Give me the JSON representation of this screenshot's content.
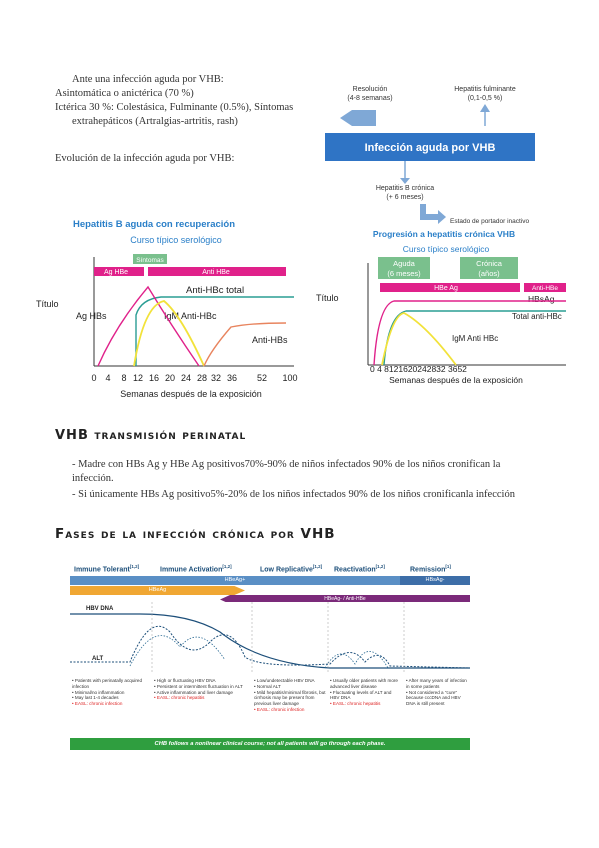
{
  "intro": {
    "line1": "Ante una infección aguda por VHB:",
    "line2": "Asintomática o anictérica (70 %)",
    "line3": "Ictérica 30 %: Colestásica, Fulminante (0.5%), Síntomas",
    "line4": "extrahepáticos (Artralgias-artritis,  rash)",
    "evolucion": "Evolución de la infección aguda por VHB:"
  },
  "flow": {
    "resolucion": "Resolución",
    "resolucion_sub": "(4-8 semanas)",
    "fulminante": "Hepatitis fulminante",
    "fulminante_sub": "(0,1-0,5 %)",
    "main_box": "Infección aguda por VHB",
    "cronica": "Hepatitis B crónica",
    "cronica_sub": "(+ 6 meses)",
    "portador": "Estado de portador inactivo"
  },
  "chart_left": {
    "title1": "Hepatitis B aguda con recuperación",
    "title2": "Curso típico serológico",
    "sintomas": "Síntomas",
    "ag_hbe": "Ag HBe",
    "anti_hbe": "Anti HBe",
    "anti_hbc_total": "Anti-HBc total",
    "ag_hbs": "Ag HBs",
    "igm": "IgM Anti-HBc",
    "anti_hbs": "Anti-HBs",
    "ylabel": "Título",
    "xlabel": "Semanas después de la exposición",
    "ticks": [
      "0",
      "4",
      "8",
      "12",
      "16",
      "20",
      "24",
      "28",
      "32",
      "36",
      "52",
      "100"
    ]
  },
  "chart_right": {
    "title1": "Progresión a hepatitis crónica VHB",
    "title2": "Curso típico serológico",
    "aguda": "Aguda",
    "aguda_sub": "(6 meses)",
    "cronica": "Crónica",
    "cronica_sub": "(años)",
    "hbe_ag": "HBe Ag",
    "anti_hbe": "Anti-HBe",
    "hbsag": "HBsAg",
    "total_anti_hbc": "Total anti-HBc",
    "igm": "IgM Anti HBc",
    "ylabel": "Título",
    "xlabel": "Semanas después de la exposición",
    "ticks": "0  4  8121620242832 3652"
  },
  "perinatal": {
    "heading": "VHB transmisión perinatal",
    "bullet1": "- Madre con HBs Ag y HBe Ag positivos70%-90% de niños infectados 90% de los niños cronifican la infección.",
    "bullet2": "- Si únicamente HBs Ag positivo5%-20% de los niños infectados 90% de los niños cronificanla infección"
  },
  "fases": {
    "heading": "Fases de la infección crónica por VHB",
    "phases": [
      "Immune Tolerant",
      "Immune Activation",
      "Low Replicative",
      "Reactivation",
      "Remission"
    ],
    "phase_refs": [
      "[1,2]",
      "[1,2]",
      "[1,2]",
      "[1,2]",
      "[1]"
    ],
    "hbeag_pos": "HBeAg+",
    "hbsag_neg": "HBsAg-",
    "hbeag_bar": "HBeAg",
    "hbeag_neg": "HBeAg- / Anti-HBe",
    "hbv_dna": "HBV DNA",
    "alt": "ALT",
    "col1": [
      "• Patients with perinatally acquired infection",
      "• Minimal/no inflammation",
      "• May last 1-4 decades"
    ],
    "col1_red": "• EASL: chronic infection",
    "col2": [
      "• High or fluctuating HBV DNA",
      "• Persistent or intermittent fluctuation in ALT",
      "• Active inflammation and liver damage"
    ],
    "col2_red": "• EASL: chronic hepatitis",
    "col3": [
      "• Low/undetectable HBV DNA",
      "• Normal ALT",
      "• Mild hepatitis/minimal fibrosis, but cirrhosis may be present from previous liver damage"
    ],
    "col3_red": "• EASL: chronic infection",
    "col4": [
      "• Usually older patients with more advanced liver disease",
      "• Fluctuating levels of ALT and HBV DNA"
    ],
    "col4_red": "• EASL: chronic hepatitis",
    "col5": [
      "• After many years of infection in some patients",
      "• Not considered a \"cure\" because cccDNA and HBV DNA is still present"
    ],
    "footer": "CHB follows a nonlinear clinical course; not all patients will go through each phase."
  }
}
